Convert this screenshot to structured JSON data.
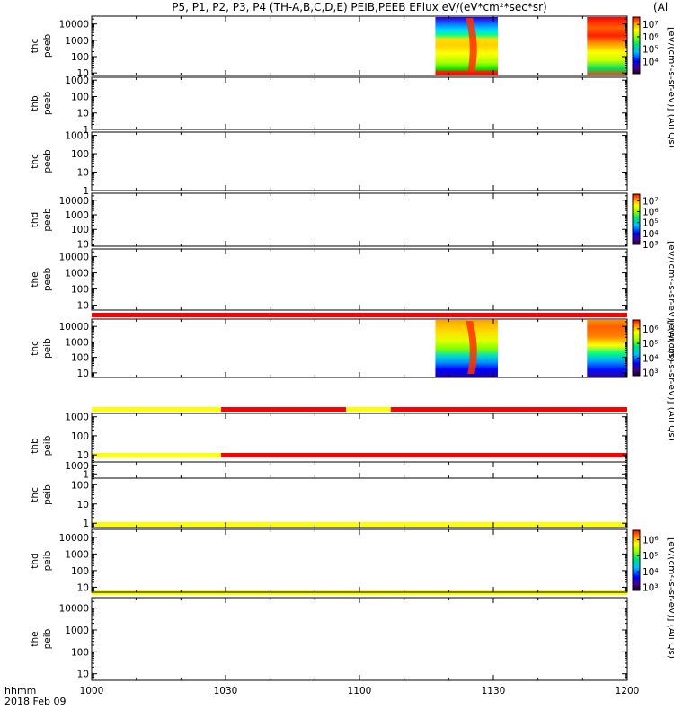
{
  "title": "P5, P1, P2, P3, P4 (TH-A,B,C,D,E) PEIB,PEEB EFlux eV/(eV*cm²*sec*sr)",
  "title_suffix": "(Al",
  "x_axis": {
    "label_line1": "hhmm",
    "label_line2": "2018 Feb 09",
    "ticks": [
      "1000",
      "1030",
      "1100",
      "1130",
      "1200"
    ]
  },
  "colorbar_labels": {
    "electron_units": "[eV/(cm²-s-sr-eV)] (All Qs)",
    "electron_units_short": "[eV/(cm²-s-sr-eV)] (All Qs)",
    "ion_units": "[eV/(cm²-s-sr-eV)] (All Qs)",
    "ion_units_short": "[eV/(cm²-s-sr-eV)] (All Qs)"
  },
  "colors": {
    "flag_red": "#ff0000",
    "flag_yellow": "#ffff00"
  },
  "chart_data": [
    {
      "type": "heatmap",
      "probe": "thc",
      "ylabel_line1": "thc",
      "ylabel_line2": "peeb",
      "ylog": true,
      "yticks": [
        "10",
        "100",
        "1000",
        "10000"
      ],
      "ylim": [
        7,
        30000
      ],
      "time_range": [
        "10:00",
        "12:00"
      ],
      "data_intervals": [
        [
          "11:17",
          "11:31"
        ],
        [
          "11:51",
          "12:00"
        ]
      ],
      "colorbar": {
        "ticks": [
          "10⁴",
          "10⁵",
          "10⁶",
          "10⁷"
        ],
        "range_log": [
          3,
          7.6
        ]
      }
    },
    {
      "type": "heatmap",
      "probe": "thb",
      "ylabel_line1": "thb",
      "ylabel_line2": "peeb",
      "ylog": true,
      "yticks": [
        "1",
        "10",
        "100",
        "1000"
      ],
      "ylim": [
        1,
        1500
      ],
      "data_intervals": []
    },
    {
      "type": "heatmap",
      "probe": "thc",
      "ylabel_line1": "thc",
      "ylabel_line2": "peeb",
      "ylog": true,
      "yticks": [
        "1",
        "10",
        "100",
        "1000"
      ],
      "ylim": [
        1,
        1500
      ],
      "data_intervals": []
    },
    {
      "type": "heatmap",
      "probe": "thd",
      "ylabel_line1": "thd",
      "ylabel_line2": "peeb",
      "ylog": true,
      "yticks": [
        "10",
        "100",
        "1000",
        "10000"
      ],
      "ylim": [
        7,
        30000
      ],
      "data_intervals": [],
      "colorbar": {
        "ticks": [
          "10³",
          "10⁴",
          "10⁵",
          "10⁶",
          "10⁷"
        ],
        "range_log": [
          3,
          7.6
        ]
      }
    },
    {
      "type": "heatmap",
      "probe": "the",
      "ylabel_line1": "the",
      "ylabel_line2": "peeb",
      "ylog": true,
      "yticks": [
        "10",
        "100",
        "1000",
        "10000"
      ],
      "ylim": [
        5,
        30000
      ],
      "data_intervals": []
    },
    {
      "type": "heatmap",
      "probe": "thc",
      "ylabel_line1": "thc",
      "ylabel_line2": "peib",
      "ylog": true,
      "yticks": [
        "10",
        "100",
        "1000",
        "10000"
      ],
      "ylim": [
        5,
        30000
      ],
      "data_intervals": [
        [
          "11:17",
          "11:31"
        ],
        [
          "11:51",
          "12:00"
        ]
      ],
      "flag_bar": [
        {
          "from": "10:00",
          "to": "12:00",
          "color": "red"
        }
      ],
      "colorbar": {
        "ticks": [
          "10³",
          "10⁴",
          "10⁵",
          "10⁶"
        ],
        "range_log": [
          2.8,
          6.6
        ]
      }
    },
    {
      "type": "heatmap",
      "probe": "thb",
      "ylabel_line1": "thb",
      "ylabel_line2": "peib",
      "ylog": true,
      "yticks": [
        "1",
        "10",
        "100",
        "1000"
      ],
      "ylim": [
        0.6,
        1500
      ],
      "data_intervals": [],
      "flag_bar": [
        {
          "from": "10:00",
          "to": "10:29",
          "color": "yellow"
        },
        {
          "from": "10:29",
          "to": "10:57",
          "color": "red"
        },
        {
          "from": "10:57",
          "to": "11:07",
          "color": "yellow"
        },
        {
          "from": "11:07",
          "to": "12:00",
          "color": "red"
        }
      ]
    },
    {
      "type": "heatmap",
      "probe": "thc",
      "ylabel_line1": "thc",
      "ylabel_line2": "peib",
      "ylog": true,
      "yticks": [
        "1",
        "10",
        "100",
        "1000"
      ],
      "ylim": [
        0.6,
        1500
      ],
      "data_intervals": [],
      "flag_bar": [
        {
          "from": "10:00",
          "to": "10:29",
          "color": "yellow"
        },
        {
          "from": "10:29",
          "to": "12:00",
          "color": "red"
        }
      ]
    },
    {
      "type": "heatmap",
      "probe": "thd",
      "ylabel_line1": "thd",
      "ylabel_line2": "peib",
      "ylog": true,
      "yticks": [
        "10",
        "100",
        "1000",
        "10000"
      ],
      "ylim": [
        5,
        30000
      ],
      "data_intervals": [],
      "flag_bar": [
        {
          "from": "10:00",
          "to": "12:00",
          "color": "yellow"
        }
      ],
      "colorbar": {
        "ticks": [
          "10³",
          "10⁴",
          "10⁵",
          "10⁶"
        ],
        "range_log": [
          2.8,
          6.6
        ]
      }
    },
    {
      "type": "heatmap",
      "probe": "the",
      "ylabel_line1": "the",
      "ylabel_line2": "peib",
      "ylog": true,
      "yticks": [
        "10",
        "100",
        "1000",
        "10000"
      ],
      "ylim": [
        5,
        30000
      ],
      "data_intervals": [],
      "flag_bar": [
        {
          "from": "10:00",
          "to": "12:00",
          "color": "yellow"
        }
      ]
    }
  ]
}
